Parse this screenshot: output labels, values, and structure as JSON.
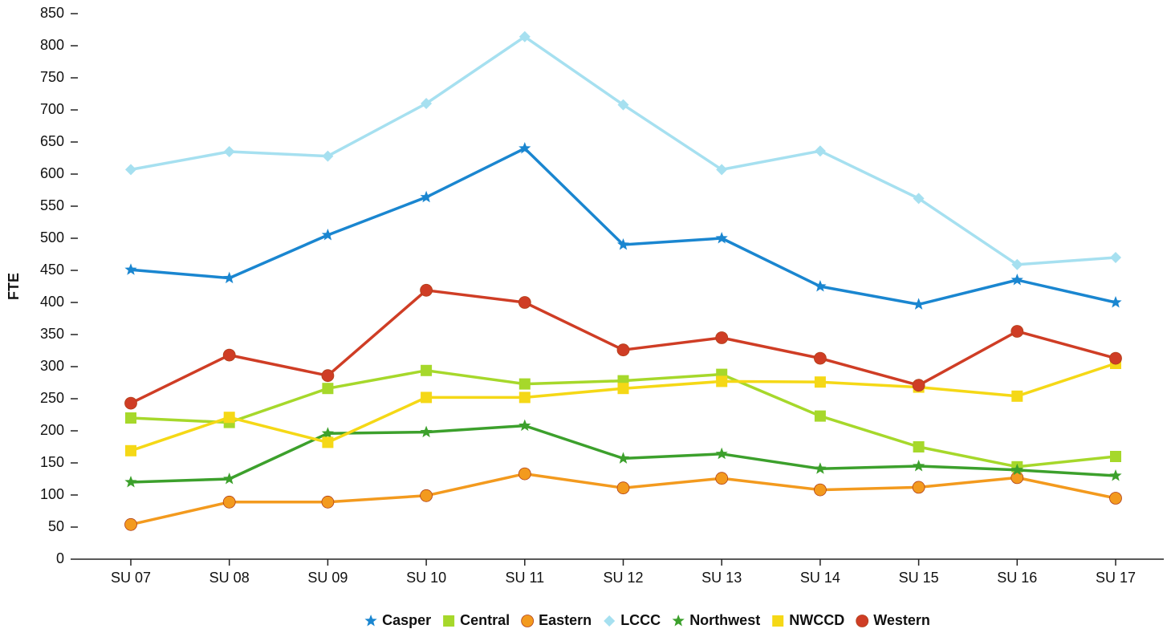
{
  "chart_data": {
    "type": "line",
    "y_label": "FTE",
    "categories": [
      "SU 07",
      "SU 08",
      "SU 09",
      "SU 10",
      "SU 11",
      "SU 12",
      "SU 13",
      "SU 14",
      "SU 15",
      "SU 16",
      "SU 17"
    ],
    "ylim": [
      0,
      850
    ],
    "yticks": [
      0,
      50,
      100,
      150,
      200,
      250,
      300,
      350,
      400,
      450,
      500,
      550,
      600,
      650,
      700,
      750,
      800,
      850
    ],
    "legend": "bottom",
    "series": [
      {
        "name": "Casper",
        "color": "#1a86d0",
        "marker": "star",
        "values": [
          451,
          438,
          505,
          564,
          640,
          490,
          500,
          425,
          397,
          435,
          400
        ]
      },
      {
        "name": "Central",
        "color": "#a6d82b",
        "marker": "square",
        "values": [
          220,
          213,
          266,
          294,
          273,
          278,
          288,
          223,
          175,
          144,
          160
        ]
      },
      {
        "name": "Eastern",
        "color": "#f39a1e",
        "marker": "circle",
        "values": [
          54,
          89,
          89,
          99,
          133,
          111,
          126,
          108,
          112,
          127,
          95
        ]
      },
      {
        "name": "LCCC",
        "color": "#a6e0f0",
        "marker": "diamond",
        "values": [
          607,
          635,
          628,
          710,
          814,
          708,
          607,
          636,
          562,
          459,
          470
        ]
      },
      {
        "name": "Northwest",
        "color": "#3ca02c",
        "marker": "star",
        "values": [
          120,
          125,
          196,
          198,
          208,
          157,
          164,
          141,
          145,
          139,
          130
        ]
      },
      {
        "name": "NWCCD",
        "color": "#f5d816",
        "marker": "square",
        "values": [
          169,
          221,
          182,
          252,
          252,
          266,
          277,
          276,
          268,
          254,
          305
        ]
      },
      {
        "name": "Western",
        "color": "#cf3d25",
        "marker": "circle",
        "values": [
          243,
          318,
          286,
          419,
          400,
          326,
          345,
          313,
          271,
          355,
          313
        ]
      }
    ]
  }
}
